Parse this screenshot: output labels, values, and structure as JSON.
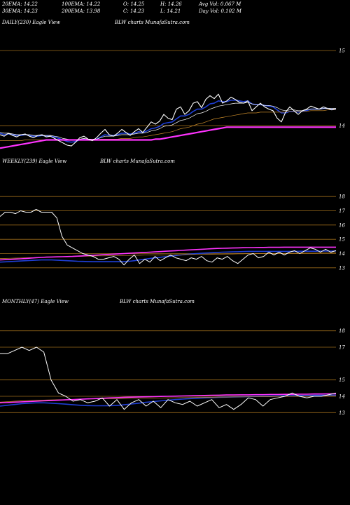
{
  "header": {
    "row1": [
      {
        "label": "20EMA:",
        "value": "14.22"
      },
      {
        "label": "100EMA:",
        "value": "14.22"
      },
      {
        "label": "O:",
        "value": "14.25"
      },
      {
        "label": "H:",
        "value": "14.26"
      },
      {
        "label": "Avg Vol:",
        "value": "0.067 M"
      }
    ],
    "row2": [
      {
        "label": "30EMA:",
        "value": "14.23"
      },
      {
        "label": "200EMA:",
        "value": "13.98"
      },
      {
        "label": "C:",
        "value": "14.23"
      },
      {
        "label": "L:",
        "value": "14.21"
      },
      {
        "label": "Day Vol:",
        "value": "0.102  M"
      }
    ]
  },
  "colors": {
    "background": "#000000",
    "grid": "#9a6a1a",
    "price": "#ffffff",
    "ema_fast": "#1f3fd6",
    "ema_slow": "#ffffff",
    "ema_long": "#c98a2a",
    "ema_200": "#ff33ff",
    "ema_100": "#ff66cc"
  },
  "chart_data": [
    {
      "type": "line",
      "title": "DAILY(230) Eagle  View",
      "subtitle": "BLW charts MunafaSutra.com",
      "ylim": [
        13.6,
        15.3
      ],
      "yticks": [
        15,
        14
      ],
      "series": [
        {
          "values": [
            13.88,
            13.86,
            13.9,
            13.87,
            13.85,
            13.88,
            13.89,
            13.86,
            13.84,
            13.87,
            13.88,
            13.85,
            13.86,
            13.83,
            13.8,
            13.77,
            13.74,
            13.73,
            13.78,
            13.84,
            13.86,
            13.82,
            13.8,
            13.84,
            13.9,
            13.95,
            13.88,
            13.86,
            13.9,
            13.95,
            13.91,
            13.87,
            13.92,
            13.96,
            13.91,
            13.98,
            14.05,
            14.02,
            14.06,
            14.15,
            14.1,
            14.08,
            14.22,
            14.25,
            14.15,
            14.2,
            14.3,
            14.32,
            14.24,
            14.35,
            14.4,
            14.36,
            14.42,
            14.3,
            14.33,
            14.38,
            14.35,
            14.31,
            14.3,
            14.33,
            14.2,
            14.25,
            14.3,
            14.25,
            14.22,
            14.2,
            14.1,
            14.05,
            14.18,
            14.25,
            14.2,
            14.15,
            14.2,
            14.22,
            14.26,
            14.24,
            14.22,
            14.25,
            14.23,
            14.21,
            14.23
          ]
        },
        {
          "values": [
            13.9,
            13.88,
            13.89,
            13.88,
            13.87,
            13.87,
            13.88,
            13.87,
            13.86,
            13.86,
            13.87,
            13.86,
            13.86,
            13.85,
            13.83,
            13.81,
            13.79,
            13.78,
            13.79,
            13.81,
            13.82,
            13.81,
            13.81,
            13.82,
            13.85,
            13.88,
            13.87,
            13.87,
            13.88,
            13.9,
            13.9,
            13.89,
            13.9,
            13.92,
            13.91,
            13.93,
            13.96,
            13.97,
            13.99,
            14.03,
            14.04,
            14.05,
            14.09,
            14.13,
            14.13,
            14.15,
            14.19,
            14.22,
            14.22,
            14.25,
            14.29,
            14.3,
            14.33,
            14.32,
            14.32,
            14.34,
            14.34,
            14.33,
            14.32,
            14.33,
            14.29,
            14.28,
            14.28,
            14.27,
            14.26,
            14.25,
            14.21,
            14.17,
            14.17,
            14.19,
            14.19,
            14.18,
            14.19,
            14.2,
            14.22,
            14.22,
            14.22,
            14.23,
            14.23,
            14.22,
            14.22
          ]
        },
        {
          "values": [
            13.91,
            13.9,
            13.9,
            13.89,
            13.88,
            13.88,
            13.88,
            13.88,
            13.87,
            13.87,
            13.87,
            13.87,
            13.87,
            13.86,
            13.85,
            13.83,
            13.82,
            13.81,
            13.81,
            13.82,
            13.83,
            13.82,
            13.82,
            13.82,
            13.84,
            13.86,
            13.86,
            13.86,
            13.87,
            13.88,
            13.88,
            13.88,
            13.89,
            13.9,
            13.9,
            13.91,
            13.93,
            13.94,
            13.96,
            13.99,
            14.0,
            14.01,
            14.04,
            14.07,
            14.08,
            14.1,
            14.13,
            14.16,
            14.17,
            14.19,
            14.22,
            14.24,
            14.26,
            14.27,
            14.28,
            14.29,
            14.3,
            14.3,
            14.3,
            14.31,
            14.29,
            14.28,
            14.28,
            14.27,
            14.27,
            14.26,
            14.24,
            14.21,
            14.2,
            14.21,
            14.21,
            14.2,
            14.2,
            14.21,
            14.22,
            14.22,
            14.22,
            14.23,
            14.23,
            14.23,
            14.23
          ]
        },
        {
          "values": [
            13.8,
            13.8,
            13.8,
            13.8,
            13.8,
            13.8,
            13.81,
            13.81,
            13.81,
            13.81,
            13.81,
            13.81,
            13.81,
            13.81,
            13.81,
            13.81,
            13.81,
            13.81,
            13.81,
            13.81,
            13.81,
            13.81,
            13.81,
            13.81,
            13.82,
            13.82,
            13.82,
            13.82,
            13.82,
            13.83,
            13.83,
            13.83,
            13.84,
            13.85,
            13.85,
            13.86,
            13.87,
            13.88,
            13.89,
            13.9,
            13.91,
            13.92,
            13.94,
            13.96,
            13.97,
            13.98,
            14.0,
            14.02,
            14.03,
            14.05,
            14.07,
            14.09,
            14.1,
            14.11,
            14.12,
            14.13,
            14.14,
            14.15,
            14.16,
            14.17,
            14.17,
            14.17,
            14.18,
            14.18,
            14.18,
            14.18,
            14.18,
            14.18,
            14.18,
            14.19,
            14.19,
            14.19,
            14.19,
            14.19,
            14.2,
            14.2,
            14.2,
            14.2,
            14.21,
            14.21,
            14.21
          ]
        },
        {
          "values": [
            13.7,
            13.71,
            13.72,
            13.73,
            13.74,
            13.75,
            13.76,
            13.77,
            13.78,
            13.79,
            13.8,
            13.81,
            13.81,
            13.81,
            13.81,
            13.81,
            13.81,
            13.81,
            13.81,
            13.81,
            13.81,
            13.81,
            13.81,
            13.81,
            13.81,
            13.81,
            13.81,
            13.81,
            13.81,
            13.81,
            13.81,
            13.81,
            13.81,
            13.81,
            13.81,
            13.81,
            13.81,
            13.82,
            13.82,
            13.83,
            13.84,
            13.85,
            13.86,
            13.87,
            13.88,
            13.89,
            13.9,
            13.91,
            13.92,
            13.93,
            13.94,
            13.95,
            13.96,
            13.97,
            13.98,
            13.98,
            13.98,
            13.98,
            13.98,
            13.98,
            13.98,
            13.98,
            13.98,
            13.98,
            13.98,
            13.98,
            13.98,
            13.98,
            13.98,
            13.98,
            13.98,
            13.98,
            13.98,
            13.98,
            13.98,
            13.98,
            13.98,
            13.98,
            13.98,
            13.98,
            13.98
          ]
        }
      ]
    },
    {
      "type": "line",
      "title": "WEEKLY(239) Eagle  View",
      "subtitle": "BLW charts MunafaSutra.com",
      "ylim": [
        12.5,
        18.5
      ],
      "yticks": [
        18,
        17,
        16,
        15,
        14,
        13
      ],
      "series": [
        {
          "values": [
            16.6,
            16.9,
            16.9,
            16.8,
            17.0,
            16.9,
            16.9,
            17.1,
            16.9,
            16.9,
            16.9,
            16.5,
            15.2,
            14.6,
            14.4,
            14.2,
            14.0,
            13.9,
            13.8,
            13.6,
            13.6,
            13.7,
            13.8,
            13.6,
            13.2,
            13.6,
            13.9,
            13.3,
            13.6,
            13.4,
            13.8,
            13.5,
            13.7,
            13.9,
            13.7,
            13.6,
            13.5,
            13.7,
            13.6,
            13.8,
            13.5,
            13.4,
            13.7,
            13.6,
            13.8,
            13.5,
            13.3,
            13.6,
            13.9,
            14.0,
            13.7,
            13.8,
            14.1,
            13.9,
            14.1,
            13.9,
            14.1,
            14.2,
            14.0,
            14.2,
            14.4,
            14.3,
            14.1,
            14.3,
            14.1,
            14.2
          ]
        },
        {
          "values": [
            13.4,
            13.42,
            13.44,
            13.46,
            13.48,
            13.5,
            13.52,
            13.54,
            13.55,
            13.55,
            13.55,
            13.54,
            13.52,
            13.5,
            13.48,
            13.46,
            13.45,
            13.44,
            13.43,
            13.43,
            13.43,
            13.43,
            13.43,
            13.43,
            13.44,
            13.46,
            13.5,
            13.55,
            13.6,
            13.65,
            13.7,
            13.74,
            13.78,
            13.82,
            13.86,
            13.9,
            13.94,
            13.97,
            14.0,
            14.02,
            14.04,
            14.06,
            14.08,
            14.1,
            14.11,
            14.12,
            14.13,
            14.14,
            14.15,
            14.15,
            14.15,
            14.15,
            14.15,
            14.15,
            14.15,
            14.15,
            14.15,
            14.15,
            14.16,
            14.16,
            14.16,
            14.16,
            14.17,
            14.17,
            14.17,
            14.18
          ]
        },
        {
          "values": [
            13.65,
            13.66,
            13.67,
            13.68,
            13.69,
            13.7,
            13.71,
            13.72,
            13.73,
            13.74,
            13.75,
            13.76,
            13.77,
            13.78,
            13.79,
            13.8,
            13.81,
            13.82,
            13.83,
            13.84,
            13.84,
            13.85,
            13.86,
            13.86,
            13.87,
            13.87,
            13.88,
            13.88,
            13.89,
            13.89,
            13.9,
            13.9,
            13.91,
            13.91,
            13.92,
            13.92,
            13.93,
            13.93,
            13.94,
            13.94,
            13.95,
            13.95,
            13.96,
            13.96,
            13.97,
            13.97,
            13.98,
            13.98,
            13.99,
            13.99,
            14.0,
            14.0,
            14.0,
            14.01,
            14.01,
            14.01,
            14.02,
            14.02,
            14.02,
            14.03,
            14.03,
            14.03,
            14.04,
            14.04,
            14.04,
            14.05
          ]
        },
        {
          "values": [
            13.55,
            13.57,
            13.59,
            13.61,
            13.63,
            13.65,
            13.68,
            13.71,
            13.73,
            13.75,
            13.76,
            13.77,
            13.78,
            13.79,
            13.8,
            13.82,
            13.84,
            13.86,
            13.88,
            13.9,
            13.92,
            13.94,
            13.96,
            13.98,
            14.0,
            14.02,
            14.04,
            14.06,
            14.08,
            14.1,
            14.12,
            14.14,
            14.16,
            14.18,
            14.2,
            14.22,
            14.24,
            14.26,
            14.28,
            14.3,
            14.32,
            14.34,
            14.36,
            14.37,
            14.38,
            14.39,
            14.4,
            14.41,
            14.42,
            14.42,
            14.43,
            14.43,
            14.44,
            14.44,
            14.44,
            14.45,
            14.45,
            14.45,
            14.45,
            14.45,
            14.45,
            14.45,
            14.45,
            14.45,
            14.45,
            14.45
          ]
        }
      ]
    },
    {
      "type": "line",
      "title": "MONTHLY(47) Eagle  View",
      "subtitle": "BLW charts MunafaSutra.com",
      "ylim": [
        12.5,
        18.5
      ],
      "yticks": [
        18,
        17,
        15,
        14,
        13
      ],
      "series": [
        {
          "values": [
            16.6,
            16.6,
            16.8,
            17.0,
            16.8,
            17.0,
            16.7,
            15.0,
            14.2,
            14.0,
            13.7,
            13.8,
            13.6,
            13.7,
            13.9,
            13.4,
            13.8,
            13.2,
            13.6,
            13.8,
            13.4,
            13.7,
            13.3,
            13.8,
            13.6,
            13.5,
            13.7,
            13.4,
            13.6,
            13.8,
            13.3,
            13.5,
            13.2,
            13.5,
            13.9,
            13.8,
            13.4,
            13.8,
            13.9,
            14.0,
            14.2,
            14.0,
            13.9,
            14.0,
            14.0,
            14.1,
            14.2
          ]
        },
        {
          "values": [
            13.4,
            13.45,
            13.5,
            13.55,
            13.58,
            13.6,
            13.6,
            13.58,
            13.55,
            13.52,
            13.48,
            13.45,
            13.43,
            13.42,
            13.42,
            13.42,
            13.44,
            13.48,
            13.53,
            13.58,
            13.63,
            13.68,
            13.72,
            13.76,
            13.8,
            13.83,
            13.86,
            13.88,
            13.9,
            13.92,
            13.94,
            13.95,
            13.96,
            13.97,
            13.98,
            13.99,
            14.0,
            14.01,
            14.02,
            14.03,
            14.04,
            14.05,
            14.05,
            14.06,
            14.06,
            14.07,
            14.07
          ]
        },
        {
          "values": [
            13.65,
            13.67,
            13.7,
            13.72,
            13.74,
            13.76,
            13.77,
            13.78,
            13.79,
            13.8,
            13.81,
            13.82,
            13.83,
            13.84,
            13.85,
            13.86,
            13.86,
            13.87,
            13.88,
            13.88,
            13.89,
            13.89,
            13.9,
            13.91,
            13.91,
            13.92,
            13.92,
            13.93,
            13.94,
            13.94,
            13.95,
            13.95,
            13.96,
            13.96,
            13.97,
            13.97,
            13.98,
            13.98,
            13.99,
            13.99,
            14.0,
            14.0,
            14.0,
            14.01,
            14.01,
            14.02,
            14.02
          ]
        },
        {
          "values": [
            13.6,
            13.62,
            13.64,
            13.66,
            13.68,
            13.7,
            13.72,
            13.74,
            13.76,
            13.78,
            13.8,
            13.82,
            13.84,
            13.86,
            13.88,
            13.9,
            13.92,
            13.94,
            13.95,
            13.96,
            13.97,
            13.98,
            13.99,
            14.0,
            14.01,
            14.02,
            14.03,
            14.04,
            14.05,
            14.06,
            14.07,
            14.08,
            14.08,
            14.09,
            14.09,
            14.1,
            14.1,
            14.11,
            14.11,
            14.12,
            14.12,
            14.13,
            14.13,
            14.14,
            14.14,
            14.15,
            14.15
          ]
        }
      ]
    }
  ]
}
